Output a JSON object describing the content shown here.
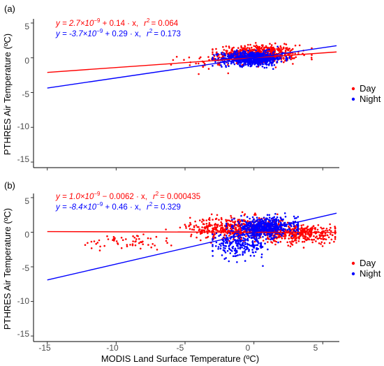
{
  "figure": {
    "x_axis_label": "MODIS Land Surface Temperature (ºC)",
    "legend": [
      {
        "label": "Day",
        "color": "#ff0000"
      },
      {
        "label": "Night",
        "color": "#0000ff"
      }
    ]
  },
  "chart_data": [
    {
      "type": "scatter",
      "panel_label": "(a)",
      "xlabel": "",
      "ylabel": "PTHRES Air Temperature (ºC)",
      "xlim": [
        -16,
        6.2
      ],
      "ylim": [
        -15.8,
        5.6
      ],
      "x_ticks": [
        -15,
        -10,
        -5,
        0,
        5
      ],
      "x_tick_labels": [],
      "y_ticks": [
        5,
        0,
        -5,
        -10,
        -15
      ],
      "y_tick_labels": [
        "5",
        "0",
        "-5",
        "-10",
        "-15"
      ],
      "grid": false,
      "legend_position": "right",
      "series": [
        {
          "name": "Day",
          "color": "#ff0000",
          "equation_prefix": "y = 2.7×10",
          "equation_exp": "−9",
          "equation_suffix": " + 0.14 · x,",
          "r2_label": "r",
          "r2_value": "= 0.064",
          "fit": {
            "intercept": 0.0,
            "slope": 0.14,
            "x_range": [
              -15,
              6
            ]
          },
          "clusters": [
            {
              "cx": 0.3,
              "cy": 0.5,
              "sx": 1.4,
              "sy": 0.65,
              "n": 620,
              "xmin": -3.0,
              "xmax": 4.2
            },
            {
              "cx": -3.5,
              "cy": -0.6,
              "sx": 1.0,
              "sy": 0.45,
              "n": 30,
              "xmin": -6.5,
              "xmax": -2.5
            }
          ]
        },
        {
          "name": "Night",
          "color": "#0000ff",
          "equation_prefix": "y = -3.7×10",
          "equation_exp": "−9",
          "equation_suffix": " + 0.29 · x,",
          "r2_label": "r",
          "r2_value": "= 0.173",
          "fit": {
            "intercept": 0.0,
            "slope": 0.29,
            "x_range": [
              -15,
              6
            ]
          },
          "clusters": [
            {
              "cx": -0.1,
              "cy": -0.1,
              "sx": 1.1,
              "sy": 0.5,
              "n": 700,
              "xmin": -3.0,
              "xmax": 2.6
            }
          ]
        }
      ]
    },
    {
      "type": "scatter",
      "panel_label": "(b)",
      "xlabel": "MODIS Land Surface Temperature (ºC)",
      "ylabel": "PTHRES Air Temperature (ºC)",
      "xlim": [
        -16,
        6.2
      ],
      "ylim": [
        -15.8,
        5.6
      ],
      "x_ticks": [
        -15,
        -10,
        -5,
        0,
        5
      ],
      "x_tick_labels": [
        "-15",
        "-10",
        "-5",
        "0",
        "5"
      ],
      "y_ticks": [
        5,
        0,
        -5,
        -10,
        -15
      ],
      "y_tick_labels": [
        "5",
        "0",
        "-5",
        "-10",
        "-15"
      ],
      "grid": false,
      "legend_position": "right",
      "series": [
        {
          "name": "Day",
          "color": "#ff0000",
          "equation_prefix": "y = 1.0×10",
          "equation_exp": "−9",
          "equation_suffix": " − 0.0062 · x,",
          "r2_label": "r",
          "r2_value": "= 0.000435",
          "fit": {
            "intercept": 0.0,
            "slope": -0.0062,
            "x_range": [
              -15,
              6
            ]
          },
          "clusters": [
            {
              "cx": -1.0,
              "cy": 0.6,
              "sx": 1.8,
              "sy": 0.8,
              "n": 550,
              "xmin": -7.0,
              "xmax": 3.0
            },
            {
              "cx": 3.5,
              "cy": -0.2,
              "sx": 1.3,
              "sy": 0.7,
              "n": 330,
              "xmin": 1.0,
              "xmax": 5.9
            },
            {
              "cx": -9.0,
              "cy": -1.4,
              "sx": 1.8,
              "sy": 0.6,
              "n": 60,
              "xmin": -14.0,
              "xmax": -6.0
            }
          ]
        },
        {
          "name": "Night",
          "color": "#0000ff",
          "equation_prefix": "y = -8.4×10",
          "equation_exp": "−9",
          "equation_suffix": " + 0.46 · x,",
          "r2_label": "r",
          "r2_value": "= 0.329",
          "fit": {
            "intercept": 0.0,
            "slope": 0.46,
            "x_range": [
              -15,
              6
            ]
          },
          "clusters": [
            {
              "cx": 0.8,
              "cy": 0.7,
              "sx": 1.1,
              "sy": 0.7,
              "n": 520,
              "xmin": -2.0,
              "xmax": 3.2
            },
            {
              "cx": -1.0,
              "cy": -1.8,
              "sx": 1.0,
              "sy": 0.9,
              "n": 260,
              "xmin": -3.0,
              "xmax": 1.0
            }
          ]
        }
      ]
    }
  ]
}
